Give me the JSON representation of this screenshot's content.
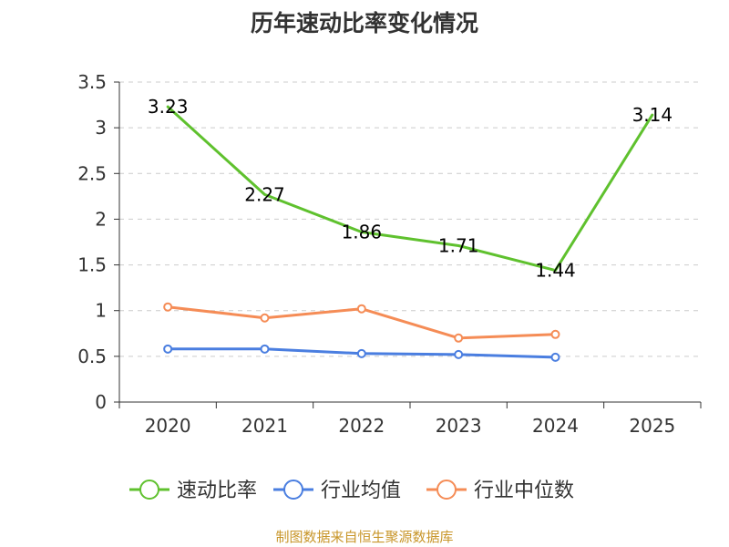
{
  "chart_data": {
    "type": "line",
    "title": "历年速动比率变化情况",
    "categories": [
      "2020",
      "2021",
      "2022",
      "2023",
      "2024",
      "2025"
    ],
    "ylim": [
      0,
      3.5
    ],
    "yticks": [
      "0",
      "0.5",
      "1",
      "1.5",
      "2",
      "2.5",
      "3",
      "3.5"
    ],
    "grid": true,
    "legend_position": "bottom",
    "series": [
      {
        "name": "速动比率",
        "color": "#5fc12e",
        "values": [
          3.23,
          2.27,
          1.86,
          1.71,
          1.44,
          3.14
        ],
        "labels": [
          "3.23",
          "2.27",
          "1.86",
          "1.71",
          "1.44",
          "3.14"
        ],
        "show_markers": false,
        "show_labels": true
      },
      {
        "name": "行业均值",
        "color": "#4a7ee0",
        "values": [
          0.58,
          0.58,
          0.53,
          0.52,
          0.49,
          null
        ],
        "show_markers": true,
        "show_labels": false
      },
      {
        "name": "行业中位数",
        "color": "#f58c56",
        "values": [
          1.04,
          0.92,
          1.02,
          0.7,
          0.74,
          null
        ],
        "show_markers": true,
        "show_labels": false
      }
    ]
  },
  "footer": {
    "source": "制图数据来自恒生聚源数据库"
  }
}
